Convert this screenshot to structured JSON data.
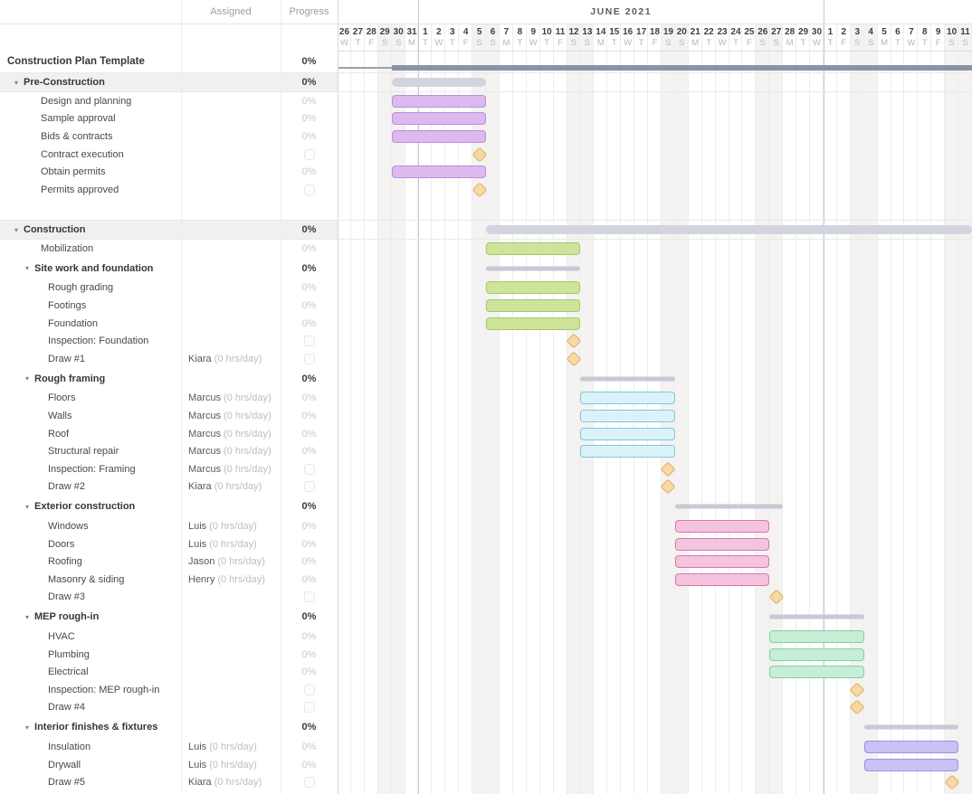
{
  "left_header": {
    "assigned": "Assigned",
    "progress": "Progress"
  },
  "timeline": {
    "month_label": "JUNE 2021",
    "month_label_start_col": 6,
    "month_label_span": 30,
    "month_separator_cols": [
      6,
      36
    ],
    "days": [
      {
        "n": "26",
        "d": "W",
        "w": false
      },
      {
        "n": "27",
        "d": "T",
        "w": false
      },
      {
        "n": "28",
        "d": "F",
        "w": false
      },
      {
        "n": "29",
        "d": "S",
        "w": true
      },
      {
        "n": "30",
        "d": "S",
        "w": true
      },
      {
        "n": "31",
        "d": "M",
        "w": false
      },
      {
        "n": "1",
        "d": "T",
        "w": false
      },
      {
        "n": "2",
        "d": "W",
        "w": false
      },
      {
        "n": "3",
        "d": "T",
        "w": false
      },
      {
        "n": "4",
        "d": "F",
        "w": false
      },
      {
        "n": "5",
        "d": "S",
        "w": true
      },
      {
        "n": "6",
        "d": "S",
        "w": true
      },
      {
        "n": "7",
        "d": "M",
        "w": false
      },
      {
        "n": "8",
        "d": "T",
        "w": false
      },
      {
        "n": "9",
        "d": "W",
        "w": false
      },
      {
        "n": "10",
        "d": "T",
        "w": false
      },
      {
        "n": "11",
        "d": "F",
        "w": false
      },
      {
        "n": "12",
        "d": "S",
        "w": true
      },
      {
        "n": "13",
        "d": "S",
        "w": true
      },
      {
        "n": "14",
        "d": "M",
        "w": false
      },
      {
        "n": "15",
        "d": "T",
        "w": false
      },
      {
        "n": "16",
        "d": "W",
        "w": false
      },
      {
        "n": "17",
        "d": "T",
        "w": false
      },
      {
        "n": "18",
        "d": "F",
        "w": false
      },
      {
        "n": "19",
        "d": "S",
        "w": true
      },
      {
        "n": "20",
        "d": "S",
        "w": true
      },
      {
        "n": "21",
        "d": "M",
        "w": false
      },
      {
        "n": "22",
        "d": "T",
        "w": false
      },
      {
        "n": "23",
        "d": "W",
        "w": false
      },
      {
        "n": "24",
        "d": "T",
        "w": false
      },
      {
        "n": "25",
        "d": "F",
        "w": false
      },
      {
        "n": "26",
        "d": "S",
        "w": true
      },
      {
        "n": "27",
        "d": "S",
        "w": true
      },
      {
        "n": "28",
        "d": "M",
        "w": false
      },
      {
        "n": "29",
        "d": "T",
        "w": false
      },
      {
        "n": "30",
        "d": "W",
        "w": false
      },
      {
        "n": "1",
        "d": "T",
        "w": false
      },
      {
        "n": "2",
        "d": "F",
        "w": false
      },
      {
        "n": "3",
        "d": "S",
        "w": true
      },
      {
        "n": "4",
        "d": "S",
        "w": true
      },
      {
        "n": "5",
        "d": "M",
        "w": false
      },
      {
        "n": "6",
        "d": "T",
        "w": false
      },
      {
        "n": "7",
        "d": "W",
        "w": false
      },
      {
        "n": "8",
        "d": "T",
        "w": false
      },
      {
        "n": "9",
        "d": "F",
        "w": false
      },
      {
        "n": "10",
        "d": "S",
        "w": true
      },
      {
        "n": "11",
        "d": "S",
        "w": true
      }
    ]
  },
  "palette": {
    "purple": {
      "fill": "#dcbaf0",
      "border": "#b98ed8"
    },
    "green": {
      "fill": "#cfe49b",
      "border": "#a6c765"
    },
    "blue": {
      "fill": "#daf3fb",
      "border": "#86c5d8"
    },
    "pink": {
      "fill": "#f4c3de",
      "border": "#d878ae"
    },
    "mint": {
      "fill": "#c6edd5",
      "border": "#84d0a5"
    },
    "lavender": {
      "fill": "#ccc1f5",
      "border": "#9e8fe4"
    },
    "milestone": {
      "fill": "#f6d9a3",
      "border": "#dfaf64"
    },
    "summary1": "#d2d5df",
    "summary2": "#c6cad6",
    "project_bar": "#8b93a6",
    "project_tail": "#9aa0ac"
  },
  "rows": [
    {
      "type": "project",
      "name": "Construction Plan Template",
      "indent": 8,
      "assigned": "",
      "hours": "",
      "progress": "0%",
      "checkbox": false,
      "bar": {
        "shape": "project",
        "start": 4,
        "span": "end"
      }
    },
    {
      "type": "group1",
      "name": "Pre-Construction",
      "indent": 16,
      "assigned": "",
      "hours": "",
      "progress": "0%",
      "checkbox": false,
      "bar": {
        "shape": "summary",
        "start": 4,
        "span": 7
      }
    },
    {
      "type": "task",
      "name": "Design and planning",
      "indent": 45,
      "assigned": "",
      "hours": "",
      "progress": "0%",
      "checkbox": false,
      "bar": {
        "shape": "bar",
        "color": "purple",
        "start": 4,
        "span": 7
      }
    },
    {
      "type": "task",
      "name": "Sample approval",
      "indent": 45,
      "assigned": "",
      "hours": "",
      "progress": "0%",
      "checkbox": false,
      "bar": {
        "shape": "bar",
        "color": "purple",
        "start": 4,
        "span": 7
      }
    },
    {
      "type": "task",
      "name": "Bids & contracts",
      "indent": 45,
      "assigned": "",
      "hours": "",
      "progress": "0%",
      "checkbox": false,
      "bar": {
        "shape": "bar",
        "color": "purple",
        "start": 4,
        "span": 7
      }
    },
    {
      "type": "task",
      "name": "Contract execution",
      "indent": 45,
      "assigned": "",
      "hours": "",
      "progress": "",
      "checkbox": true,
      "bar": {
        "shape": "milestone",
        "start": 10
      }
    },
    {
      "type": "task",
      "name": "Obtain permits",
      "indent": 45,
      "assigned": "",
      "hours": "",
      "progress": "0%",
      "checkbox": false,
      "bar": {
        "shape": "bar",
        "color": "purple",
        "start": 4,
        "span": 7
      }
    },
    {
      "type": "task",
      "name": "Permits approved",
      "indent": 45,
      "assigned": "",
      "hours": "",
      "progress": "",
      "checkbox": true,
      "bar": {
        "shape": "milestone",
        "start": 10
      }
    },
    {
      "type": "spacer",
      "name": "",
      "indent": 0,
      "assigned": "",
      "hours": "",
      "progress": "",
      "checkbox": false,
      "bar": null
    },
    {
      "type": "group1",
      "name": "Construction",
      "indent": 16,
      "assigned": "",
      "hours": "",
      "progress": "0%",
      "checkbox": false,
      "bar": {
        "shape": "summary",
        "start": 11,
        "span": "end"
      }
    },
    {
      "type": "task",
      "name": "Mobilization",
      "indent": 45,
      "assigned": "",
      "hours": "",
      "progress": "0%",
      "checkbox": false,
      "bar": {
        "shape": "bar",
        "color": "green",
        "start": 11,
        "span": 7
      }
    },
    {
      "type": "group2",
      "name": "Site work and foundation",
      "indent": 28,
      "assigned": "",
      "hours": "",
      "progress": "0%",
      "checkbox": false,
      "bar": {
        "shape": "summary-sm",
        "start": 11,
        "span": 7
      }
    },
    {
      "type": "task",
      "name": "Rough grading",
      "indent": 53,
      "assigned": "",
      "hours": "",
      "progress": "0%",
      "checkbox": false,
      "bar": {
        "shape": "bar",
        "color": "green",
        "start": 11,
        "span": 7
      }
    },
    {
      "type": "task",
      "name": "Footings",
      "indent": 53,
      "assigned": "",
      "hours": "",
      "progress": "0%",
      "checkbox": false,
      "bar": {
        "shape": "bar",
        "color": "green",
        "start": 11,
        "span": 7
      }
    },
    {
      "type": "task",
      "name": "Foundation",
      "indent": 53,
      "assigned": "",
      "hours": "",
      "progress": "0%",
      "checkbox": false,
      "bar": {
        "shape": "bar",
        "color": "green",
        "start": 11,
        "span": 7
      }
    },
    {
      "type": "task",
      "name": "Inspection: Foundation",
      "indent": 53,
      "assigned": "",
      "hours": "",
      "progress": "",
      "checkbox": true,
      "bar": {
        "shape": "milestone",
        "start": 17
      }
    },
    {
      "type": "task",
      "name": "Draw #1",
      "indent": 53,
      "assigned": "Kiara",
      "hours": "(0 hrs/day)",
      "progress": "",
      "checkbox": true,
      "bar": {
        "shape": "milestone",
        "start": 17
      }
    },
    {
      "type": "group2",
      "name": "Rough framing",
      "indent": 28,
      "assigned": "",
      "hours": "",
      "progress": "0%",
      "checkbox": false,
      "bar": {
        "shape": "summary-sm",
        "start": 18,
        "span": 7
      }
    },
    {
      "type": "task",
      "name": "Floors",
      "indent": 53,
      "assigned": "Marcus",
      "hours": "(0 hrs/day)",
      "progress": "0%",
      "checkbox": false,
      "bar": {
        "shape": "bar",
        "color": "blue",
        "start": 18,
        "span": 7
      }
    },
    {
      "type": "task",
      "name": "Walls",
      "indent": 53,
      "assigned": "Marcus",
      "hours": "(0 hrs/day)",
      "progress": "0%",
      "checkbox": false,
      "bar": {
        "shape": "bar",
        "color": "blue",
        "start": 18,
        "span": 7
      }
    },
    {
      "type": "task",
      "name": "Roof",
      "indent": 53,
      "assigned": "Marcus",
      "hours": "(0 hrs/day)",
      "progress": "0%",
      "checkbox": false,
      "bar": {
        "shape": "bar",
        "color": "blue",
        "start": 18,
        "span": 7
      }
    },
    {
      "type": "task",
      "name": "Structural repair",
      "indent": 53,
      "assigned": "Marcus",
      "hours": "(0 hrs/day)",
      "progress": "0%",
      "checkbox": false,
      "bar": {
        "shape": "bar",
        "color": "blue",
        "start": 18,
        "span": 7
      }
    },
    {
      "type": "task",
      "name": "Inspection: Framing",
      "indent": 53,
      "assigned": "Marcus",
      "hours": "(0 hrs/day)",
      "progress": "",
      "checkbox": true,
      "bar": {
        "shape": "milestone",
        "start": 24
      }
    },
    {
      "type": "task",
      "name": "Draw #2",
      "indent": 53,
      "assigned": "Kiara",
      "hours": "(0 hrs/day)",
      "progress": "",
      "checkbox": true,
      "bar": {
        "shape": "milestone",
        "start": 24
      }
    },
    {
      "type": "group2",
      "name": "Exterior construction",
      "indent": 28,
      "assigned": "",
      "hours": "",
      "progress": "0%",
      "checkbox": false,
      "bar": {
        "shape": "summary-sm",
        "start": 25,
        "span": 8
      }
    },
    {
      "type": "task",
      "name": "Windows",
      "indent": 53,
      "assigned": "Luis",
      "hours": "(0 hrs/day)",
      "progress": "0%",
      "checkbox": false,
      "bar": {
        "shape": "bar",
        "color": "pink",
        "start": 25,
        "span": 7
      }
    },
    {
      "type": "task",
      "name": "Doors",
      "indent": 53,
      "assigned": "Luis",
      "hours": "(0 hrs/day)",
      "progress": "0%",
      "checkbox": false,
      "bar": {
        "shape": "bar",
        "color": "pink",
        "start": 25,
        "span": 7
      }
    },
    {
      "type": "task",
      "name": "Roofing",
      "indent": 53,
      "assigned": "Jason",
      "hours": "(0 hrs/day)",
      "progress": "0%",
      "checkbox": false,
      "bar": {
        "shape": "bar",
        "color": "pink",
        "start": 25,
        "span": 7
      }
    },
    {
      "type": "task",
      "name": "Masonry & siding",
      "indent": 53,
      "assigned": "Henry",
      "hours": "(0 hrs/day)",
      "progress": "0%",
      "checkbox": false,
      "bar": {
        "shape": "bar",
        "color": "pink",
        "start": 25,
        "span": 7
      }
    },
    {
      "type": "task",
      "name": "Draw #3",
      "indent": 53,
      "assigned": "",
      "hours": "",
      "progress": "",
      "checkbox": true,
      "bar": {
        "shape": "milestone",
        "start": 32
      }
    },
    {
      "type": "group2",
      "name": "MEP rough-in",
      "indent": 28,
      "assigned": "",
      "hours": "",
      "progress": "0%",
      "checkbox": false,
      "bar": {
        "shape": "summary-sm",
        "start": 32,
        "span": 7
      }
    },
    {
      "type": "task",
      "name": "HVAC",
      "indent": 53,
      "assigned": "",
      "hours": "",
      "progress": "0%",
      "checkbox": false,
      "bar": {
        "shape": "bar",
        "color": "mint",
        "start": 32,
        "span": 7
      }
    },
    {
      "type": "task",
      "name": "Plumbing",
      "indent": 53,
      "assigned": "",
      "hours": "",
      "progress": "0%",
      "checkbox": false,
      "bar": {
        "shape": "bar",
        "color": "mint",
        "start": 32,
        "span": 7
      }
    },
    {
      "type": "task",
      "name": "Electrical",
      "indent": 53,
      "assigned": "",
      "hours": "",
      "progress": "0%",
      "checkbox": false,
      "bar": {
        "shape": "bar",
        "color": "mint",
        "start": 32,
        "span": 7
      }
    },
    {
      "type": "task",
      "name": "Inspection: MEP rough-in",
      "indent": 53,
      "assigned": "",
      "hours": "",
      "progress": "",
      "checkbox": true,
      "bar": {
        "shape": "milestone",
        "start": 38
      }
    },
    {
      "type": "task",
      "name": "Draw #4",
      "indent": 53,
      "assigned": "",
      "hours": "",
      "progress": "",
      "checkbox": true,
      "bar": {
        "shape": "milestone",
        "start": 38
      }
    },
    {
      "type": "group2",
      "name": "Interior finishes & fixtures",
      "indent": 28,
      "assigned": "",
      "hours": "",
      "progress": "0%",
      "checkbox": false,
      "bar": {
        "shape": "summary-sm",
        "start": 39,
        "span": 7
      }
    },
    {
      "type": "task",
      "name": "Insulation",
      "indent": 53,
      "assigned": "Luis",
      "hours": "(0 hrs/day)",
      "progress": "0%",
      "checkbox": false,
      "bar": {
        "shape": "bar",
        "color": "lavender",
        "start": 39,
        "span": 7
      }
    },
    {
      "type": "task",
      "name": "Drywall",
      "indent": 53,
      "assigned": "Luis",
      "hours": "(0 hrs/day)",
      "progress": "0%",
      "checkbox": false,
      "bar": {
        "shape": "bar",
        "color": "lavender",
        "start": 39,
        "span": 7
      }
    },
    {
      "type": "task",
      "name": "Draw #5",
      "indent": 53,
      "assigned": "Kiara",
      "hours": "(0 hrs/day)",
      "progress": "",
      "checkbox": true,
      "bar": {
        "shape": "milestone",
        "start": 45
      }
    }
  ]
}
